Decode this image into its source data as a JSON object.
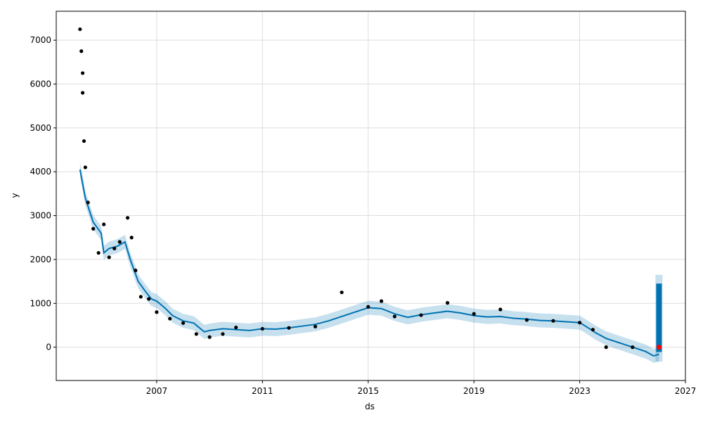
{
  "chart_data": {
    "type": "line",
    "xlabel": "ds",
    "ylabel": "y",
    "xlim": [
      2003.2,
      2027.0
    ],
    "ylim": [
      -760,
      7660
    ],
    "x_ticks": [
      2007,
      2011,
      2015,
      2019,
      2023,
      2027
    ],
    "x_tick_labels": [
      "2007",
      "2011",
      "2015",
      "2019",
      "2023",
      "2027"
    ],
    "y_ticks": [
      0,
      1000,
      2000,
      3000,
      4000,
      5000,
      6000,
      7000
    ],
    "y_tick_labels": [
      "0",
      "1000",
      "2000",
      "3000",
      "4000",
      "5000",
      "6000",
      "7000"
    ],
    "grid": true,
    "colors": {
      "observed": "#000000",
      "forecast": "#0072B2",
      "uncertainty": "#0072B2",
      "highlight": "#ff0000",
      "grid": "#dddddd"
    },
    "forecast": {
      "name": "yhat",
      "x": [
        2004.1,
        2004.3,
        2004.6,
        2004.9,
        2005.0,
        2005.2,
        2005.5,
        2005.8,
        2006.0,
        2006.3,
        2006.6,
        2006.8,
        2007.0,
        2007.3,
        2007.6,
        2008.0,
        2008.4,
        2008.8,
        2009.0,
        2009.5,
        2010.0,
        2010.5,
        2011.0,
        2011.5,
        2012.0,
        2012.5,
        2013.0,
        2013.5,
        2014.0,
        2014.5,
        2015.0,
        2015.5,
        2016.0,
        2016.5,
        2017.0,
        2017.5,
        2018.0,
        2018.5,
        2019.0,
        2019.5,
        2020.0,
        2020.5,
        2021.0,
        2021.5,
        2022.0,
        2022.5,
        2023.0,
        2023.3,
        2023.6,
        2024.0,
        2024.5,
        2025.0,
        2025.5,
        2025.8,
        2026.0
      ],
      "y": [
        4050,
        3400,
        2850,
        2600,
        2150,
        2250,
        2300,
        2400,
        2000,
        1500,
        1250,
        1100,
        1050,
        900,
        720,
        600,
        550,
        350,
        380,
        420,
        400,
        380,
        420,
        410,
        440,
        480,
        520,
        600,
        700,
        800,
        900,
        880,
        760,
        680,
        740,
        780,
        820,
        780,
        720,
        690,
        700,
        660,
        640,
        610,
        600,
        580,
        560,
        450,
        330,
        200,
        100,
        0,
        -100,
        -200,
        -160
      ]
    },
    "band_halfwidth": 160,
    "observed": {
      "name": "y",
      "x": [
        2004.1,
        2004.15,
        2004.2,
        2004.2,
        2004.25,
        2004.3,
        2004.4,
        2004.6,
        2004.8,
        2005.0,
        2005.2,
        2005.4,
        2005.6,
        2005.9,
        2006.05,
        2006.2,
        2006.4,
        2006.7,
        2007.0,
        2007.5,
        2008.0,
        2008.5,
        2009.0,
        2009.5,
        2010.0,
        2011.0,
        2012.0,
        2013.0,
        2014.0,
        2015.0,
        2015.5,
        2016.0,
        2017.0,
        2018.0,
        2019.0,
        2020.0,
        2021.0,
        2022.0,
        2023.0,
        2023.5,
        2024.0,
        2025.0,
        2026.0
      ],
      "y": [
        7250,
        6750,
        6250,
        5800,
        4700,
        4100,
        3300,
        2700,
        2150,
        2800,
        2050,
        2250,
        2400,
        2950,
        2500,
        1750,
        1150,
        1100,
        800,
        650,
        550,
        300,
        230,
        300,
        450,
        420,
        440,
        470,
        1250,
        920,
        1050,
        700,
        730,
        1010,
        760,
        860,
        620,
        600,
        560,
        400,
        0,
        0,
        0
      ]
    },
    "highlight_point": {
      "x": 2026.0,
      "y": 0
    },
    "forecast_bar": {
      "x": 2026.0,
      "y0": -110,
      "y1": 1450,
      "band_y0": -330,
      "band_y1": 1650
    }
  }
}
